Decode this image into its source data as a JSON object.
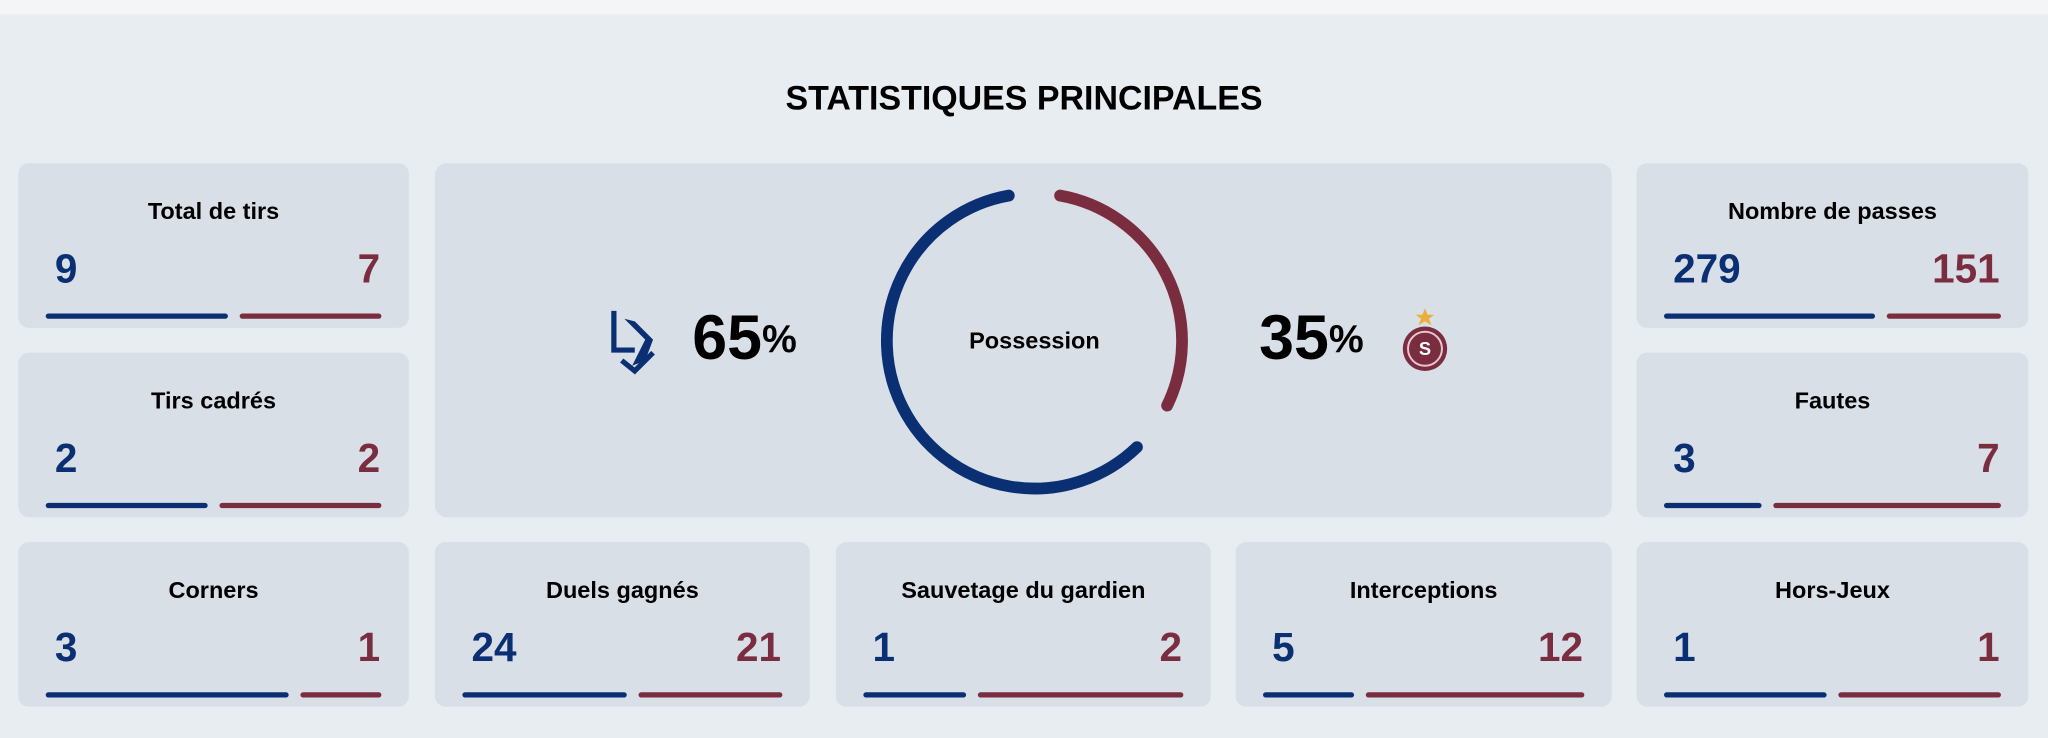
{
  "title": "STATISTIQUES PRINCIPALES",
  "home_color": "#0b2f73",
  "away_color": "#7b2d40",
  "possession": {
    "label": "Possession",
    "home": 65,
    "away": 35,
    "unit": "%"
  },
  "stats": [
    {
      "label": "Total de tirs",
      "home": 9,
      "away": 7
    },
    {
      "label": "Tirs cadrés",
      "home": 2,
      "away": 2
    },
    {
      "label": "Corners",
      "home": 3,
      "away": 1
    },
    {
      "label": "Duels gagnés",
      "home": 24,
      "away": 21
    },
    {
      "label": "Sauvetage du gardien",
      "home": 1,
      "away": 2
    },
    {
      "label": "Interceptions",
      "home": 5,
      "away": 12
    },
    {
      "label": "Nombre de passes",
      "home": 279,
      "away": 151
    },
    {
      "label": "Fautes",
      "home": 3,
      "away": 7
    },
    {
      "label": "Hors-Jeux",
      "home": 1,
      "away": 1
    }
  ]
}
